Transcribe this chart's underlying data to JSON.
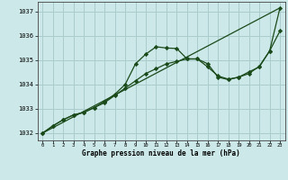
{
  "title": "Graphe pression niveau de la mer (hPa)",
  "bg_color": "#cce8e8",
  "grid_color": "#aacccc",
  "line_color": "#1a4a1a",
  "xlim": [
    -0.5,
    23.5
  ],
  "ylim": [
    1031.7,
    1037.4
  ],
  "yticks": [
    1032,
    1033,
    1034,
    1035,
    1036,
    1037
  ],
  "xticks": [
    0,
    1,
    2,
    3,
    4,
    5,
    6,
    7,
    8,
    9,
    10,
    11,
    12,
    13,
    14,
    15,
    16,
    17,
    18,
    19,
    20,
    21,
    22,
    23
  ],
  "series1_no_markers": {
    "x": [
      0,
      23
    ],
    "y": [
      1032.0,
      1037.15
    ]
  },
  "series2": {
    "x": [
      0,
      1,
      2,
      3,
      4,
      5,
      6,
      7,
      8,
      9,
      10,
      11,
      12,
      13,
      14,
      15,
      16,
      17,
      18,
      19,
      20,
      21,
      22,
      23
    ],
    "y": [
      1032.0,
      1032.3,
      1032.55,
      1032.75,
      1032.85,
      1033.05,
      1033.25,
      1033.55,
      1033.85,
      1034.15,
      1034.45,
      1034.65,
      1034.85,
      1034.95,
      1035.05,
      1035.05,
      1034.72,
      1034.35,
      1034.22,
      1034.3,
      1034.52,
      1034.72,
      1035.38,
      1036.2
    ]
  },
  "series3": {
    "x": [
      0,
      1,
      2,
      3,
      4,
      5,
      6,
      7,
      8,
      9,
      10,
      11,
      12,
      13,
      14,
      15,
      16,
      17,
      18,
      19,
      20,
      21,
      22,
      23
    ],
    "y": [
      1032.0,
      1032.3,
      1032.55,
      1032.75,
      1032.85,
      1033.05,
      1033.3,
      1033.6,
      1034.0,
      1034.85,
      1035.25,
      1035.55,
      1035.5,
      1035.48,
      1035.05,
      1035.05,
      1034.85,
      1034.3,
      1034.2,
      1034.3,
      1034.45,
      1034.75,
      1035.38,
      1037.15
    ]
  }
}
